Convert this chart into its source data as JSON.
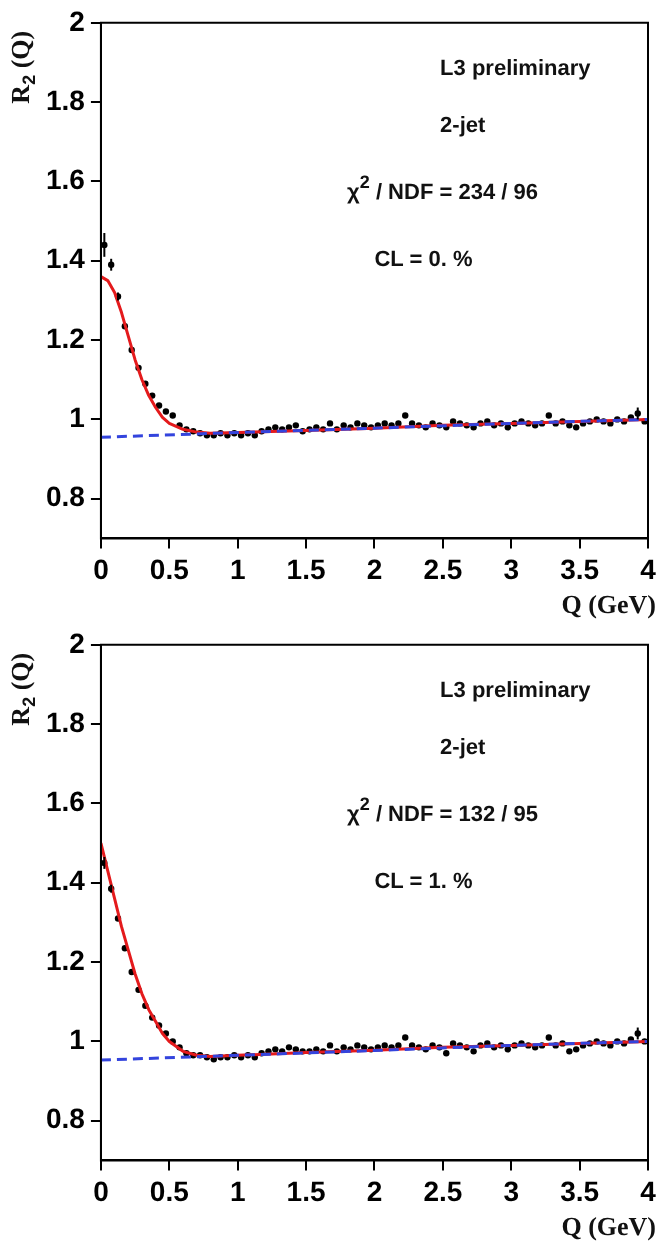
{
  "chart_data": [
    {
      "type": "scatter",
      "xlabel": "Q (GeV)",
      "ylabel": "R$_{2}$ (Q)",
      "xlim": [
        0,
        4
      ],
      "xticks": [
        0,
        0.5,
        1,
        1.5,
        2,
        2.5,
        3,
        3.5,
        4
      ],
      "ylim": [
        0.7,
        2
      ],
      "yticks": [
        0.8,
        1,
        1.2,
        1.4,
        1.6,
        1.8,
        2
      ],
      "annotations": [
        "L3 preliminary",
        "2-jet",
        "χ$^{2}$ / NDF = 234 / 96",
        "CL = 0. %"
      ],
      "series": [
        {
          "type": "line",
          "marker": "none",
          "color": "#3344dd",
          "line_style": "dashed",
          "x": [
            0,
            1,
            2,
            3,
            4
          ],
          "values": [
            0.955,
            0.967,
            0.978,
            0.99,
            1.0
          ]
        },
        {
          "type": "line",
          "marker": "none",
          "color": "#e41a1c",
          "line_style": "solid",
          "x": [
            0,
            0.05,
            0.1,
            0.15,
            0.2,
            0.25,
            0.3,
            0.35,
            0.4,
            0.45,
            0.5,
            0.6,
            0.7,
            0.8,
            1.0,
            1.5,
            2,
            2.5,
            3,
            3.5,
            4
          ],
          "values": [
            1.36,
            1.35,
            1.32,
            1.27,
            1.21,
            1.15,
            1.1,
            1.06,
            1.03,
            1.005,
            0.99,
            0.975,
            0.968,
            0.965,
            0.967,
            0.972,
            0.978,
            0.985,
            0.99,
            0.995,
            1.0
          ]
        },
        {
          "marker": "circle",
          "color": "#000000",
          "x": [
            0.025,
            0.075,
            0.125,
            0.175,
            0.225,
            0.275,
            0.325,
            0.375,
            0.425,
            0.475,
            0.525,
            0.575,
            0.625,
            0.675,
            0.725,
            0.775,
            0.825,
            0.875,
            0.925,
            0.975,
            1.025,
            1.075,
            1.125,
            1.175,
            1.225,
            1.275,
            1.325,
            1.375,
            1.425,
            1.475,
            1.525,
            1.575,
            1.625,
            1.675,
            1.725,
            1.775,
            1.825,
            1.875,
            1.925,
            1.975,
            2.025,
            2.075,
            2.125,
            2.175,
            2.225,
            2.275,
            2.325,
            2.375,
            2.425,
            2.475,
            2.525,
            2.575,
            2.625,
            2.675,
            2.725,
            2.775,
            2.825,
            2.875,
            2.925,
            2.975,
            3.025,
            3.075,
            3.125,
            3.175,
            3.225,
            3.275,
            3.325,
            3.375,
            3.425,
            3.475,
            3.525,
            3.575,
            3.625,
            3.675,
            3.725,
            3.775,
            3.825,
            3.875,
            3.925,
            3.975
          ],
          "values": [
            1.44,
            1.39,
            1.31,
            1.235,
            1.175,
            1.13,
            1.09,
            1.06,
            1.035,
            1.02,
            1.01,
            0.985,
            0.975,
            0.97,
            0.965,
            0.96,
            0.96,
            0.965,
            0.96,
            0.965,
            0.96,
            0.965,
            0.96,
            0.97,
            0.975,
            0.98,
            0.975,
            0.98,
            0.985,
            0.97,
            0.975,
            0.98,
            0.975,
            0.99,
            0.975,
            0.985,
            0.98,
            0.99,
            0.985,
            0.98,
            0.985,
            0.99,
            0.985,
            0.99,
            1.01,
            0.99,
            0.985,
            0.98,
            0.99,
            0.985,
            0.98,
            0.995,
            0.99,
            0.985,
            0.98,
            0.99,
            0.995,
            0.985,
            0.99,
            0.98,
            0.99,
            0.995,
            0.99,
            0.985,
            0.99,
            1.01,
            0.99,
            0.995,
            0.985,
            0.98,
            0.99,
            0.995,
            1.0,
            0.995,
            0.99,
            1.0,
            0.995,
            1.005,
            1.015,
            0.995
          ],
          "errors": [
            0.03,
            0.015,
            0.01,
            null,
            null,
            null,
            null,
            null,
            null,
            null,
            null,
            null,
            null,
            null,
            null,
            null,
            null,
            null,
            null,
            null,
            null,
            null,
            null,
            null,
            null,
            null,
            null,
            null,
            null,
            null,
            null,
            null,
            null,
            null,
            null,
            null,
            null,
            null,
            null,
            null,
            null,
            null,
            null,
            null,
            null,
            null,
            null,
            null,
            null,
            null,
            null,
            null,
            null,
            null,
            null,
            null,
            null,
            null,
            null,
            null,
            null,
            null,
            null,
            null,
            null,
            null,
            null,
            null,
            null,
            null,
            null,
            null,
            null,
            null,
            null,
            null,
            null,
            null,
            0.015,
            null
          ]
        }
      ]
    },
    {
      "type": "scatter",
      "xlabel": "Q (GeV)",
      "ylabel": "R$_{2}$ (Q)",
      "xlim": [
        0,
        4
      ],
      "xticks": [
        0,
        0.5,
        1,
        1.5,
        2,
        2.5,
        3,
        3.5,
        4
      ],
      "ylim": [
        0.7,
        2
      ],
      "yticks": [
        0.8,
        1,
        1.2,
        1.4,
        1.6,
        1.8,
        2
      ],
      "annotations": [
        "L3 preliminary",
        "2-jet",
        "χ$^{2}$ / NDF = 132 / 95",
        "CL = 1. %"
      ],
      "series": [
        {
          "type": "line",
          "marker": "none",
          "color": "#3344dd",
          "line_style": "dashed",
          "x": [
            0,
            1,
            2,
            3,
            4
          ],
          "values": [
            0.953,
            0.965,
            0.977,
            0.99,
            1.0
          ]
        },
        {
          "type": "line",
          "marker": "none",
          "color": "#e41a1c",
          "line_style": "solid",
          "x": [
            0,
            0.05,
            0.1,
            0.15,
            0.2,
            0.25,
            0.3,
            0.35,
            0.4,
            0.45,
            0.5,
            0.6,
            0.7,
            0.8,
            1.0,
            1.5,
            2,
            2.5,
            3,
            3.5,
            4
          ],
          "values": [
            1.5,
            1.43,
            1.36,
            1.29,
            1.23,
            1.17,
            1.12,
            1.08,
            1.05,
            1.02,
            1.0,
            0.975,
            0.965,
            0.962,
            0.965,
            0.972,
            0.978,
            0.985,
            0.99,
            0.995,
            1.0
          ]
        },
        {
          "marker": "circle",
          "color": "#000000",
          "x": [
            0.025,
            0.075,
            0.125,
            0.175,
            0.225,
            0.275,
            0.325,
            0.375,
            0.425,
            0.475,
            0.525,
            0.575,
            0.625,
            0.675,
            0.725,
            0.775,
            0.825,
            0.875,
            0.925,
            0.975,
            1.025,
            1.075,
            1.125,
            1.175,
            1.225,
            1.275,
            1.325,
            1.375,
            1.425,
            1.475,
            1.525,
            1.575,
            1.625,
            1.675,
            1.725,
            1.775,
            1.825,
            1.875,
            1.925,
            1.975,
            2.025,
            2.075,
            2.125,
            2.175,
            2.225,
            2.275,
            2.325,
            2.375,
            2.425,
            2.475,
            2.525,
            2.575,
            2.625,
            2.675,
            2.725,
            2.775,
            2.825,
            2.875,
            2.925,
            2.975,
            3.025,
            3.075,
            3.125,
            3.175,
            3.225,
            3.275,
            3.325,
            3.375,
            3.425,
            3.475,
            3.525,
            3.575,
            3.625,
            3.675,
            3.725,
            3.775,
            3.825,
            3.875,
            3.925,
            3.975
          ],
          "values": [
            1.45,
            1.385,
            1.31,
            1.235,
            1.175,
            1.13,
            1.09,
            1.06,
            1.04,
            1.02,
            1.0,
            0.985,
            0.97,
            0.965,
            0.965,
            0.96,
            0.955,
            0.96,
            0.96,
            0.965,
            0.96,
            0.965,
            0.96,
            0.97,
            0.975,
            0.98,
            0.975,
            0.985,
            0.98,
            0.975,
            0.975,
            0.98,
            0.975,
            0.99,
            0.975,
            0.985,
            0.98,
            0.99,
            0.985,
            0.98,
            0.985,
            0.99,
            0.985,
            0.99,
            1.01,
            0.99,
            0.985,
            0.98,
            0.99,
            0.985,
            0.97,
            0.995,
            0.99,
            0.985,
            0.975,
            0.99,
            0.995,
            0.985,
            0.99,
            0.98,
            0.99,
            0.995,
            0.99,
            0.985,
            0.99,
            1.01,
            0.99,
            0.995,
            0.975,
            0.98,
            0.99,
            0.995,
            1.0,
            0.995,
            0.99,
            1.0,
            0.995,
            1.005,
            1.02,
            1.0
          ],
          "errors": [
            0.015,
            0.01,
            null,
            null,
            null,
            null,
            null,
            null,
            null,
            null,
            null,
            null,
            null,
            null,
            null,
            null,
            null,
            null,
            null,
            null,
            null,
            null,
            null,
            null,
            null,
            null,
            null,
            null,
            null,
            null,
            null,
            null,
            null,
            null,
            null,
            null,
            null,
            null,
            null,
            null,
            null,
            null,
            null,
            null,
            null,
            null,
            null,
            null,
            null,
            null,
            null,
            null,
            null,
            null,
            null,
            null,
            null,
            null,
            null,
            null,
            null,
            null,
            null,
            null,
            null,
            null,
            null,
            null,
            null,
            null,
            null,
            null,
            null,
            null,
            null,
            null,
            null,
            null,
            0.015,
            null
          ]
        }
      ]
    }
  ]
}
